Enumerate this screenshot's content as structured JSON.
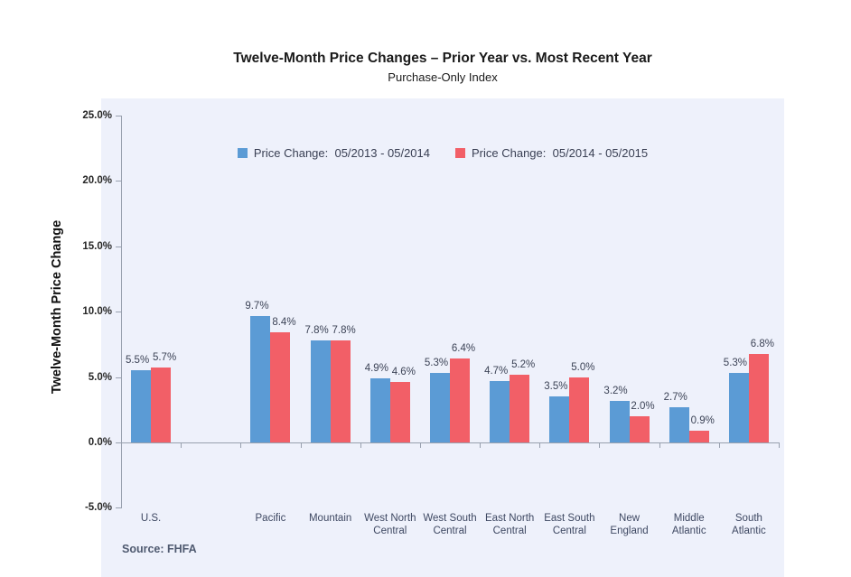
{
  "title": "Twelve-Month Price Changes – Prior Year vs. Most Recent Year",
  "subtitle": "Purchase-Only Index",
  "source_note": "Source: FHFA",
  "colors": {
    "panel_background": "#eef1fb",
    "axis": "#98a0ae",
    "series_blue": "#5b9bd5",
    "series_red": "#f25f67"
  },
  "chart_data": {
    "type": "bar",
    "title": "Twelve-Month Price Changes – Prior Year vs. Most Recent Year",
    "subtitle": "Purchase-Only Index",
    "xlabel": "",
    "ylabel": "Twelve-Month Price Change",
    "ylim": [
      -5,
      25
    ],
    "grid": false,
    "legend_position": "top-center",
    "value_label_suffix": "%",
    "blank_slot_after_index": 0,
    "categories": [
      "U.S.",
      "Pacific",
      "Mountain",
      "West North Central",
      "West South Central",
      "East North Central",
      "East South Central",
      "New England",
      "Middle Atlantic",
      "South Atlantic"
    ],
    "series": [
      {
        "name": "Price Change:  05/2013 - 05/2014",
        "color": "#5b9bd5",
        "values": [
          5.5,
          9.7,
          7.8,
          4.9,
          5.3,
          4.7,
          3.5,
          3.2,
          2.7,
          5.3
        ]
      },
      {
        "name": "Price Change:  05/2014 - 05/2015",
        "color": "#f25f67",
        "values": [
          5.7,
          8.4,
          7.8,
          4.6,
          6.4,
          5.2,
          5.0,
          2.0,
          0.9,
          6.8
        ]
      }
    ],
    "y_ticks": [
      {
        "label": "25.0%",
        "value": 25
      },
      {
        "label": "20.0%",
        "value": 20
      },
      {
        "label": "15.0%",
        "value": 15
      },
      {
        "label": "10.0%",
        "value": 10
      },
      {
        "label": "5.0%",
        "value": 5
      },
      {
        "label": "0.0%",
        "value": 0
      },
      {
        "label": "-5.0%",
        "value": -5
      }
    ]
  }
}
